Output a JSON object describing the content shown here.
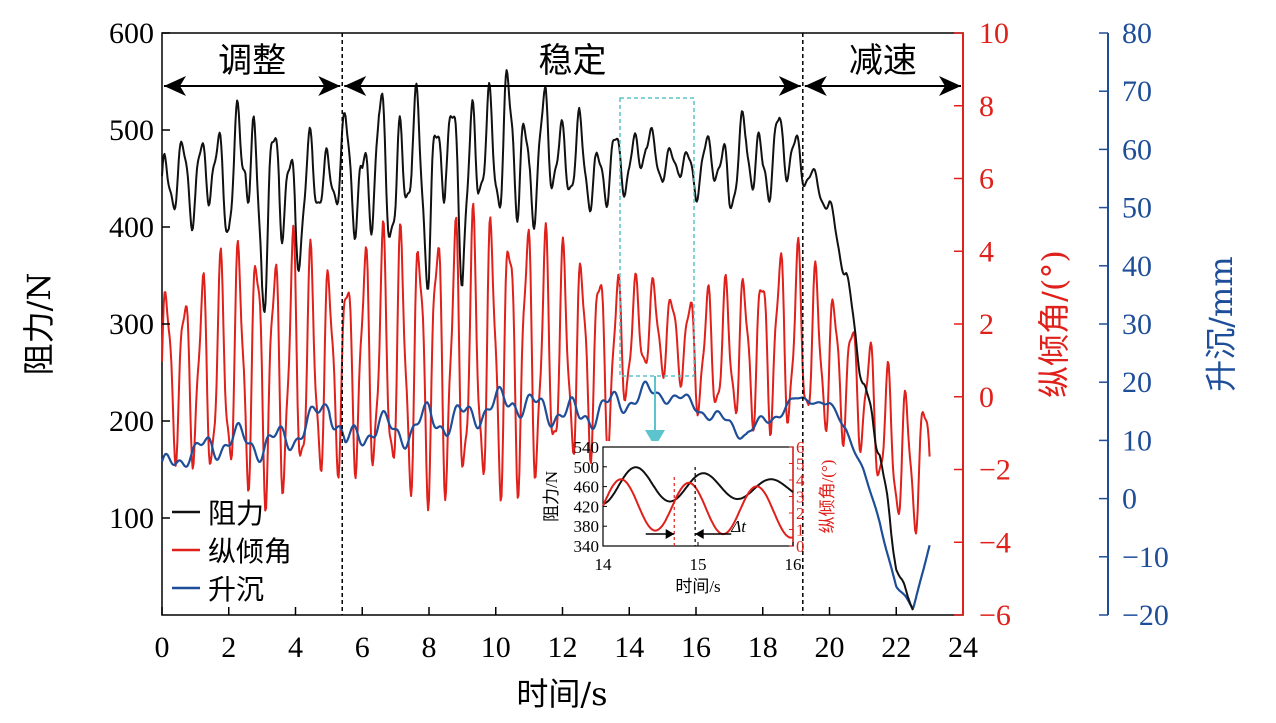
{
  "chart_data": {
    "type": "line",
    "x_label": "时间/s",
    "y_label_left": "阻力/N",
    "y_label_right1": "纵倾角/(°)",
    "y_label_right2": "升沉/mm",
    "x_range": [
      0,
      24
    ],
    "x_ticks": [
      "0",
      "2",
      "4",
      "6",
      "8",
      "10",
      "12",
      "14",
      "16",
      "18",
      "20",
      "22",
      "24"
    ],
    "y_left_range": [
      0,
      600
    ],
    "y_left_ticks": [
      "100",
      "200",
      "300",
      "400",
      "500",
      "600"
    ],
    "y_right1_range": [
      -6,
      10
    ],
    "y_right1_ticks": [
      "−6",
      "−4",
      "−2",
      "0",
      "2",
      "4",
      "6",
      "8",
      "10"
    ],
    "y_right2_range": [
      -20,
      80
    ],
    "y_right2_ticks": [
      "−20",
      "−10",
      "0",
      "10",
      "20",
      "30",
      "40",
      "50",
      "60",
      "70",
      "80"
    ],
    "colors": {
      "resistance": "#111111",
      "trim": "#e0201b",
      "heave": "#1f4e99",
      "box": "#5cc4cc"
    },
    "phases": [
      {
        "label": "调整",
        "start": 0,
        "end": 5.4
      },
      {
        "label": "稳定",
        "start": 5.4,
        "end": 19.2
      },
      {
        "label": "减速",
        "start": 19.2,
        "end": 24
      }
    ],
    "legend": [
      "阻力",
      "纵倾角",
      "升沉"
    ],
    "series": [
      {
        "name": "阻力",
        "axis": "left",
        "x": [
          0,
          0.5,
          1,
          1.5,
          2,
          2.5,
          3,
          3.5,
          4,
          4.5,
          5,
          5.5,
          6,
          6.5,
          7,
          7.5,
          8,
          8.5,
          9,
          9.5,
          10,
          10.5,
          11,
          11.5,
          12,
          12.5,
          13,
          13.5,
          14,
          14.5,
          15,
          15.5,
          16,
          16.5,
          17,
          17.5,
          18,
          18.5,
          19,
          19.5,
          20,
          20.5,
          21,
          21.5,
          22,
          22.5
        ],
        "y": [
          430,
          460,
          440,
          470,
          430,
          500,
          380,
          470,
          400,
          460,
          440,
          480,
          420,
          490,
          420,
          500,
          400,
          510,
          410,
          490,
          470,
          500,
          440,
          500,
          460,
          480,
          440,
          470,
          460,
          490,
          460,
          470,
          450,
          480,
          440,
          490,
          450,
          490,
          470,
          450,
          420,
          350,
          240,
          170,
          50,
          5
        ],
        "amp": [
          35,
          30,
          40,
          35,
          45,
          60,
          70,
          60,
          55,
          40,
          30,
          40,
          55,
          55,
          60,
          60,
          65,
          60,
          65,
          60,
          55,
          70,
          50,
          45,
          40,
          35,
          35,
          30,
          25,
          20,
          15,
          15,
          20,
          25,
          30,
          35,
          35,
          30,
          25,
          10,
          10,
          10,
          10,
          10,
          5,
          0
        ]
      },
      {
        "name": "纵倾角",
        "axis": "right1",
        "x": [
          0,
          0.5,
          1,
          1.5,
          2,
          2.5,
          3,
          3.5,
          4,
          4.5,
          5,
          5.5,
          6,
          6.5,
          7,
          7.5,
          8,
          8.5,
          9,
          9.5,
          10,
          10.5,
          11,
          11.5,
          12,
          12.5,
          13,
          13.5,
          14,
          14.5,
          15,
          15.5,
          16,
          16.5,
          17,
          17.5,
          18,
          18.5,
          19,
          19.5,
          20,
          20.5,
          21,
          21.5,
          22,
          22.5,
          23
        ],
        "y": [
          0.8,
          0.6,
          0.7,
          0.5,
          0.9,
          1.0,
          0.8,
          0.6,
          0.9,
          0.8,
          0.7,
          0.9,
          1.0,
          1.1,
          1.0,
          0.9,
          1.0,
          1.1,
          1.0,
          1.2,
          1.1,
          1.3,
          1.2,
          1.1,
          1.2,
          1.1,
          1.2,
          1.0,
          1.6,
          2.0,
          1.8,
          1.6,
          1.2,
          1.2,
          1.3,
          1.3,
          1.4,
          1.6,
          1.6,
          1.4,
          1.0,
          0.6,
          0.2,
          -0.8,
          -1.5,
          -2.0,
          -1.5
        ],
        "amp": [
          2.2,
          2.0,
          2.3,
          2.6,
          2.8,
          3.0,
          3.2,
          3.0,
          3.2,
          2.8,
          2.6,
          2.4,
          2.8,
          3.0,
          3.2,
          3.2,
          3.3,
          3.4,
          3.3,
          3.4,
          3.4,
          3.3,
          3.3,
          3.0,
          2.6,
          2.5,
          2.4,
          2.2,
          1.4,
          1.2,
          1.1,
          1.0,
          1.5,
          1.6,
          1.7,
          1.8,
          2.0,
          2.2,
          2.3,
          2.0,
          1.8,
          1.6,
          1.5,
          1.6,
          1.8,
          1.6,
          1.4
        ]
      },
      {
        "name": "升沉",
        "axis": "right2",
        "x": [
          0,
          0.5,
          1,
          1.5,
          2,
          2.5,
          3,
          3.5,
          4,
          4.5,
          5,
          5.5,
          6,
          6.5,
          7,
          7.5,
          8,
          8.5,
          9,
          9.5,
          10,
          10.5,
          11,
          11.5,
          12,
          12.5,
          13,
          13.5,
          14,
          14.5,
          15,
          15.5,
          16,
          16.5,
          17,
          17.5,
          18,
          18.5,
          19,
          19.5,
          20,
          20.5,
          21,
          21.5,
          22,
          22.5,
          23
        ],
        "y": [
          5,
          7,
          8,
          9,
          10,
          10,
          9,
          10,
          11,
          13,
          17,
          9,
          11,
          13,
          11,
          12,
          14,
          13,
          14,
          15,
          16,
          17,
          16,
          15,
          15,
          14,
          15,
          16,
          17,
          18,
          18,
          17,
          16,
          14,
          13,
          11,
          13,
          15,
          17,
          17,
          16,
          12,
          5,
          -4,
          -15,
          -19,
          -8
        ],
        "amp": [
          1.5,
          1.5,
          1.5,
          2,
          2,
          2,
          2,
          2,
          2,
          2,
          2,
          2,
          2,
          2,
          2,
          2,
          2,
          2,
          2,
          2,
          2,
          2,
          2,
          2,
          2,
          2,
          2,
          2,
          1.5,
          1.5,
          1,
          1,
          1,
          1,
          1,
          1,
          1,
          1,
          0.5,
          0.5,
          0.5,
          0.5,
          0.3,
          0.3,
          0.3,
          0.3,
          0
        ]
      }
    ],
    "inset": {
      "x_label": "时间/s",
      "y_label_left": "阻力/N",
      "y_label_right": "纵倾角/(°)",
      "x_range": [
        14,
        16
      ],
      "x_ticks": [
        "14",
        "15",
        "16"
      ],
      "y_left_range": [
        340,
        540
      ],
      "y_left_ticks": [
        "340",
        "380",
        "420",
        "460",
        "500",
        "540"
      ],
      "y_right_range": [
        0,
        6
      ],
      "y_right_ticks": [
        "0",
        "1",
        "2",
        "3",
        "4",
        "5",
        "6"
      ],
      "annotation": "Δt",
      "source_range": [
        13.8,
        15.9
      ]
    }
  }
}
